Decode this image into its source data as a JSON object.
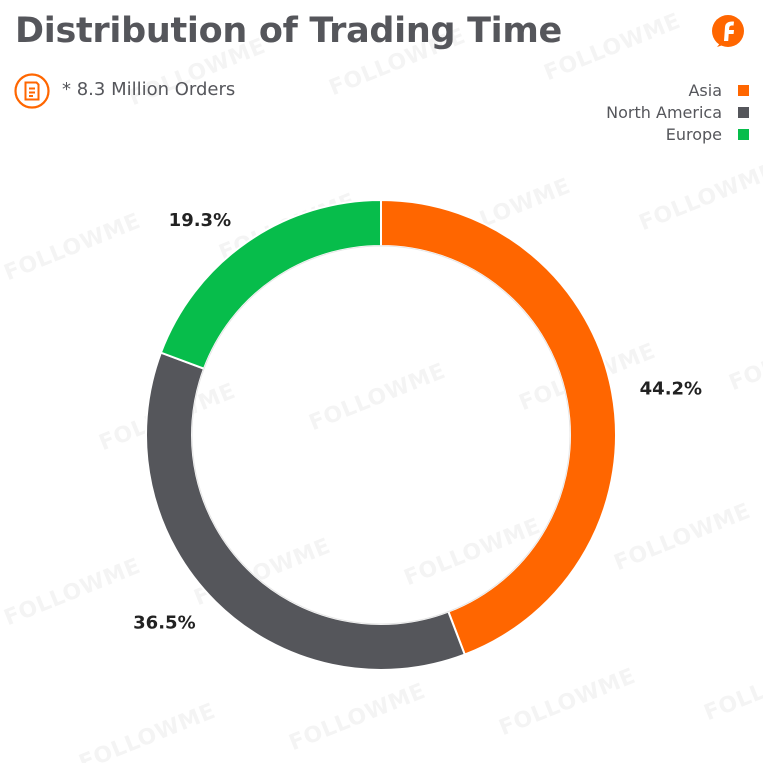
{
  "header": {
    "title": "Distribution of Trading Time",
    "note": "* 8.3 Million Orders",
    "brand_icon": "followme-logo-icon",
    "note_icon": "document-icon"
  },
  "watermark": {
    "text": "FOLLOWME"
  },
  "colors": {
    "accent": "#ff6600",
    "text": "#55565b"
  },
  "chart_data": {
    "type": "pie",
    "variant": "donut",
    "title": "Distribution of Trading Time",
    "subtitle": "* 8.3 Million Orders",
    "legend_position": "top-right",
    "slices": [
      {
        "name": "Asia",
        "value": 44.2,
        "label": "44.2%",
        "color": "#ff6600"
      },
      {
        "name": "North America",
        "value": 36.5,
        "label": "36.5%",
        "color": "#55565b"
      },
      {
        "name": "Europe",
        "value": 19.3,
        "label": "19.3%",
        "color": "#07bd4b"
      }
    ]
  }
}
